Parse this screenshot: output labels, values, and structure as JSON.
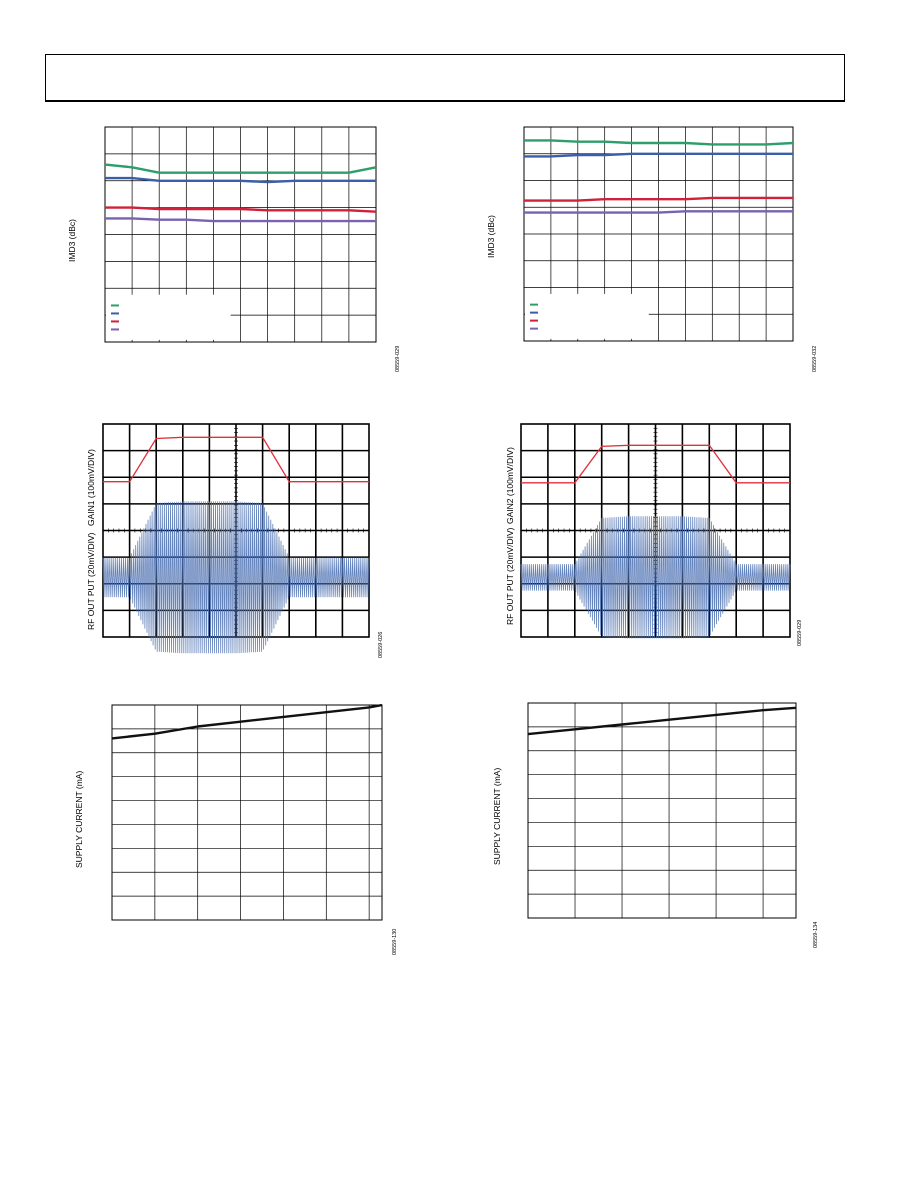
{
  "page": {
    "header_title": ""
  },
  "colors": {
    "green": "#2e9e6b",
    "blue": "#3a5ea8",
    "red": "#d0203a",
    "purple": "#7a62b0",
    "black": "#111111",
    "scope_blue": "#4a6fb0",
    "scope_red": "#e0303a"
  },
  "figures": {
    "imd_left": {
      "ylabel": "IMD3 (dBc)",
      "id": "08559-029"
    },
    "imd_right": {
      "ylabel": "IMD3 (dBc)",
      "id": "08559-032"
    },
    "scope_left": {
      "ylabel_top": "GAIN1 (100mV/DIV)",
      "ylabel_bottom": "RF OUT PUT (20mV/DIV)",
      "id": "08559-026"
    },
    "scope_right": {
      "ylabel_top": "GAIN2 (100mV/DIV)",
      "ylabel_bottom": "RF OUT PUT (20mV/DIV)",
      "id": "08559-029"
    },
    "supply_left": {
      "ylabel": "SUPPLY CURRENT (mA)",
      "id": "08559-130"
    },
    "supply_right": {
      "ylabel": "SUPPLY CURRENT (mA)",
      "id": "08559-134"
    }
  },
  "chart_data": [
    {
      "type": "line",
      "title": "",
      "xlabel": "",
      "ylabel": "IMD3 (dBc)",
      "ylim": [
        0,
        8
      ],
      "grid": true,
      "legend": "bottom-left",
      "x": [
        0,
        1,
        2,
        3,
        4,
        5,
        6,
        7,
        8,
        9,
        10
      ],
      "series": [
        {
          "values": [
            6.6,
            6.5,
            6.3,
            6.3,
            6.3,
            6.3,
            6.3,
            6.3,
            6.3,
            6.3,
            6.5
          ],
          "color": "green"
        },
        {
          "values": [
            6.1,
            6.1,
            6.0,
            6.0,
            6.0,
            6.0,
            5.95,
            6.0,
            6.0,
            6.0,
            6.0
          ],
          "color": "blue"
        },
        {
          "values": [
            5.0,
            5.0,
            4.95,
            4.95,
            4.95,
            4.95,
            4.9,
            4.9,
            4.9,
            4.9,
            4.85
          ],
          "color": "red"
        },
        {
          "values": [
            4.6,
            4.6,
            4.55,
            4.55,
            4.5,
            4.5,
            4.5,
            4.5,
            4.5,
            4.5,
            4.5
          ],
          "color": "purple"
        }
      ]
    },
    {
      "type": "line",
      "title": "",
      "xlabel": "",
      "ylabel": "IMD3 (dBc)",
      "ylim": [
        0,
        8
      ],
      "grid": true,
      "legend": "bottom-left",
      "x": [
        0,
        1,
        2,
        3,
        4,
        5,
        6,
        7,
        8,
        9,
        10
      ],
      "series": [
        {
          "values": [
            7.5,
            7.5,
            7.45,
            7.45,
            7.4,
            7.4,
            7.4,
            7.35,
            7.35,
            7.35,
            7.4
          ],
          "color": "green"
        },
        {
          "values": [
            6.9,
            6.9,
            6.95,
            6.95,
            7.0,
            7.0,
            7.0,
            7.0,
            7.0,
            7.0,
            7.0
          ],
          "color": "blue"
        },
        {
          "values": [
            5.25,
            5.25,
            5.25,
            5.3,
            5.3,
            5.3,
            5.3,
            5.35,
            5.35,
            5.35,
            5.35
          ],
          "color": "red"
        },
        {
          "values": [
            4.8,
            4.8,
            4.8,
            4.8,
            4.8,
            4.8,
            4.85,
            4.85,
            4.85,
            4.85,
            4.85
          ],
          "color": "purple"
        }
      ]
    },
    {
      "type": "line",
      "title": "",
      "xlabel": "",
      "ylabel": "GAIN1 (100mV/DIV) / RF OUT PUT (20mV/DIV)",
      "grid": true,
      "x": [
        0,
        1,
        2,
        3,
        4,
        5,
        6,
        7,
        8,
        9,
        10
      ],
      "series": [
        {
          "values": [
            1.3,
            1.3,
            5.1,
            5.2,
            5.2,
            5.2,
            5.2,
            1.3,
            1.3,
            1.3,
            1.3
          ],
          "color": "scope_red"
        },
        {
          "values": [
            1.2,
            1.2,
            4.5,
            4.6,
            4.6,
            4.6,
            4.5,
            1.2,
            1.2,
            1.2,
            1.2
          ],
          "color": "scope_blue"
        }
      ]
    },
    {
      "type": "line",
      "title": "",
      "xlabel": "",
      "ylabel": "GAIN2 (100mV/DIV) / RF OUT PUT (20mV/DIV)",
      "grid": true,
      "x": [
        0,
        1,
        2,
        3,
        4,
        5,
        6,
        7,
        8,
        9,
        10
      ],
      "series": [
        {
          "values": [
            1.2,
            1.2,
            1.2,
            4.4,
            4.5,
            4.5,
            4.5,
            4.5,
            1.2,
            1.2,
            1.2
          ],
          "color": "scope_red"
        },
        {
          "values": [
            0.8,
            0.8,
            0.8,
            3.6,
            3.7,
            3.7,
            3.7,
            3.6,
            0.8,
            0.8,
            0.8
          ],
          "color": "scope_blue"
        }
      ]
    },
    {
      "type": "line",
      "title": "",
      "xlabel": "",
      "ylabel": "SUPPLY CURRENT (mA)",
      "ylim": [
        0,
        9
      ],
      "grid": true,
      "x": [
        0,
        1,
        2,
        3,
        4,
        5,
        6,
        6.3
      ],
      "series": [
        {
          "values": [
            7.6,
            7.8,
            8.1,
            8.3,
            8.5,
            8.7,
            8.9,
            9.0
          ],
          "color": "black"
        }
      ]
    },
    {
      "type": "line",
      "title": "",
      "xlabel": "",
      "ylabel": "SUPPLY CURRENT (mA)",
      "ylim": [
        0,
        9
      ],
      "grid": true,
      "x": [
        0,
        1,
        2,
        3,
        4,
        5,
        5.7
      ],
      "series": [
        {
          "values": [
            7.7,
            7.9,
            8.1,
            8.3,
            8.5,
            8.7,
            8.8
          ],
          "color": "black"
        }
      ]
    }
  ]
}
